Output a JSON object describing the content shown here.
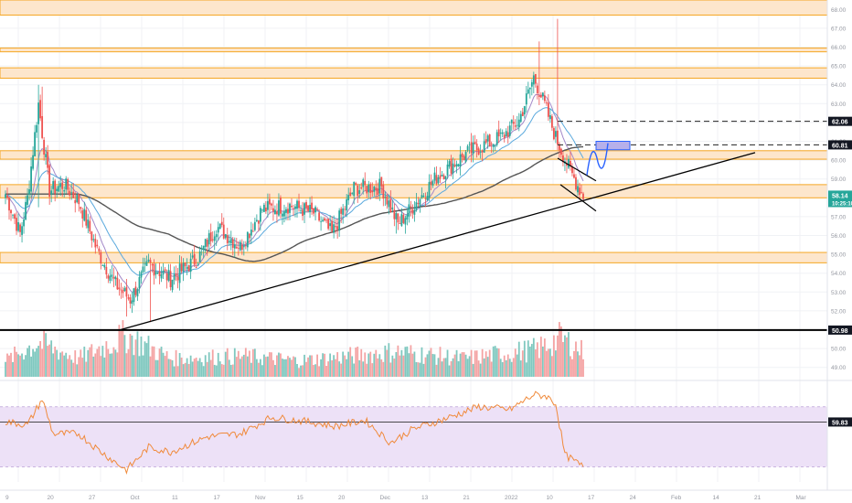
{
  "legend": {
    "title": "",
    "lines": [
      "",
      "",
      ""
    ]
  },
  "colors": {
    "up": "#26a69a",
    "down": "#ef5350",
    "up_vol": "#7fc8bf",
    "down_vol": "#f4a3a3",
    "zone_fill": "#fde6cc",
    "zone_line": "#f5a623",
    "ema_fast": "#a489c9",
    "ema_mid": "#5aa9dd",
    "ema_slow": "#555555",
    "rsi_line": "#f08a3b",
    "rsi_band": "#ede1f7",
    "projection": "#2962ff",
    "target_box": "#b7b0ea",
    "label_dark": "#131722",
    "label_green": "#26a69a",
    "grid": "#f0f2f5",
    "axis_text": "#9598a1"
  },
  "chart_data": {
    "type": "candlestick",
    "price_axis": {
      "ymin": 48.5,
      "ymax": 68.5,
      "ticks": [
        49,
        50,
        51,
        52,
        53,
        54,
        55,
        56,
        57,
        58,
        59,
        60,
        61,
        62,
        63,
        64,
        65,
        66,
        67,
        68
      ]
    },
    "rsi_axis": {
      "ymin": 20,
      "ymax": 85,
      "upper_band": 70,
      "lower_band": 30,
      "mid_line": 59.83
    },
    "price_labels": [
      {
        "name": "level-62-06",
        "value": 62.06,
        "text": "62.06",
        "style": "dark"
      },
      {
        "name": "level-60-81",
        "value": 60.81,
        "text": "60.81",
        "style": "dark"
      },
      {
        "name": "current-price",
        "value": 58.14,
        "text": "58.14",
        "style": "green"
      },
      {
        "name": "countdown",
        "value": 57.75,
        "text": "10:25:10",
        "style": "green"
      },
      {
        "name": "level-50-98",
        "value": 50.98,
        "text": "50.98",
        "style": "dark"
      }
    ],
    "rsi_labels": [
      {
        "name": "rsi-level-59-83",
        "value": 59.83,
        "text": "59.83"
      }
    ],
    "zones": [
      {
        "from": 67.7,
        "to": 68.5
      },
      {
        "from": 65.75,
        "to": 65.95
      },
      {
        "from": 64.35,
        "to": 64.9
      },
      {
        "from": 60.05,
        "to": 60.5
      },
      {
        "from": 58.0,
        "to": 58.7
      },
      {
        "from": 54.55,
        "to": 55.1
      }
    ],
    "dashed_levels": [
      62.06,
      60.81
    ],
    "support_level": 50.98,
    "x_labels": [
      "9",
      "20",
      "27",
      "Oct",
      "11",
      "17",
      "Nov",
      "15",
      "20",
      "Dec",
      "13",
      "21",
      "2022",
      "10",
      "17",
      "24",
      "Feb",
      "14",
      "21",
      "Mar"
    ],
    "anchors": [
      {
        "i": 0,
        "p": 58.2
      },
      {
        "i": 8,
        "p": 56.1
      },
      {
        "i": 12,
        "p": 58.0
      },
      {
        "i": 18,
        "p": 63.0
      },
      {
        "i": 24,
        "p": 58.4
      },
      {
        "i": 32,
        "p": 58.7
      },
      {
        "i": 40,
        "p": 57.8
      },
      {
        "i": 50,
        "p": 55.2
      },
      {
        "i": 60,
        "p": 53.4
      },
      {
        "i": 68,
        "p": 52.6
      },
      {
        "i": 78,
        "p": 54.5
      },
      {
        "i": 90,
        "p": 53.7
      },
      {
        "i": 105,
        "p": 54.8
      },
      {
        "i": 115,
        "p": 56.5
      },
      {
        "i": 128,
        "p": 55.4
      },
      {
        "i": 140,
        "p": 57.4
      },
      {
        "i": 155,
        "p": 57.6
      },
      {
        "i": 168,
        "p": 57.2
      },
      {
        "i": 178,
        "p": 56.1
      },
      {
        "i": 190,
        "p": 58.5
      },
      {
        "i": 205,
        "p": 58.6
      },
      {
        "i": 214,
        "p": 56.6
      },
      {
        "i": 220,
        "p": 57.3
      },
      {
        "i": 235,
        "p": 59.1
      },
      {
        "i": 252,
        "p": 60.4
      },
      {
        "i": 270,
        "p": 61.2
      },
      {
        "i": 280,
        "p": 62.1
      },
      {
        "i": 288,
        "p": 64.4
      },
      {
        "i": 293,
        "p": 63.2
      },
      {
        "i": 300,
        "p": 61.2
      },
      {
        "i": 308,
        "p": 59.4
      },
      {
        "i": 315,
        "p": 58.1
      }
    ],
    "spikes": [
      {
        "i": 18,
        "high": 64.0,
        "low": 57.5
      },
      {
        "i": 20,
        "high": 63.9
      },
      {
        "i": 66,
        "low": 51.7
      },
      {
        "i": 79,
        "low": 51.4
      },
      {
        "i": 291,
        "high": 66.3
      },
      {
        "i": 301,
        "high": 67.5
      },
      {
        "i": 213,
        "low": 56.1
      }
    ],
    "volume_anchors": [
      {
        "i": 0,
        "v": 0.35
      },
      {
        "i": 18,
        "v": 0.75
      },
      {
        "i": 40,
        "v": 0.4
      },
      {
        "i": 66,
        "v": 0.9
      },
      {
        "i": 90,
        "v": 0.4
      },
      {
        "i": 130,
        "v": 0.45
      },
      {
        "i": 160,
        "v": 0.35
      },
      {
        "i": 213,
        "v": 0.55
      },
      {
        "i": 250,
        "v": 0.4
      },
      {
        "i": 290,
        "v": 0.6
      },
      {
        "i": 303,
        "v": 0.85
      },
      {
        "i": 315,
        "v": 0.55
      }
    ],
    "rsi_anchors": [
      {
        "i": 0,
        "v": 60
      },
      {
        "i": 12,
        "v": 58
      },
      {
        "i": 20,
        "v": 75
      },
      {
        "i": 26,
        "v": 52
      },
      {
        "i": 40,
        "v": 52
      },
      {
        "i": 50,
        "v": 42
      },
      {
        "i": 60,
        "v": 33
      },
      {
        "i": 66,
        "v": 28
      },
      {
        "i": 78,
        "v": 43
      },
      {
        "i": 90,
        "v": 40
      },
      {
        "i": 110,
        "v": 50
      },
      {
        "i": 128,
        "v": 52
      },
      {
        "i": 145,
        "v": 63
      },
      {
        "i": 165,
        "v": 60
      },
      {
        "i": 180,
        "v": 57
      },
      {
        "i": 196,
        "v": 61
      },
      {
        "i": 210,
        "v": 46
      },
      {
        "i": 222,
        "v": 55
      },
      {
        "i": 240,
        "v": 62
      },
      {
        "i": 258,
        "v": 70
      },
      {
        "i": 275,
        "v": 68
      },
      {
        "i": 288,
        "v": 78
      },
      {
        "i": 295,
        "v": 77
      },
      {
        "i": 300,
        "v": 72
      },
      {
        "i": 305,
        "v": 38
      },
      {
        "i": 315,
        "v": 30
      }
    ]
  }
}
